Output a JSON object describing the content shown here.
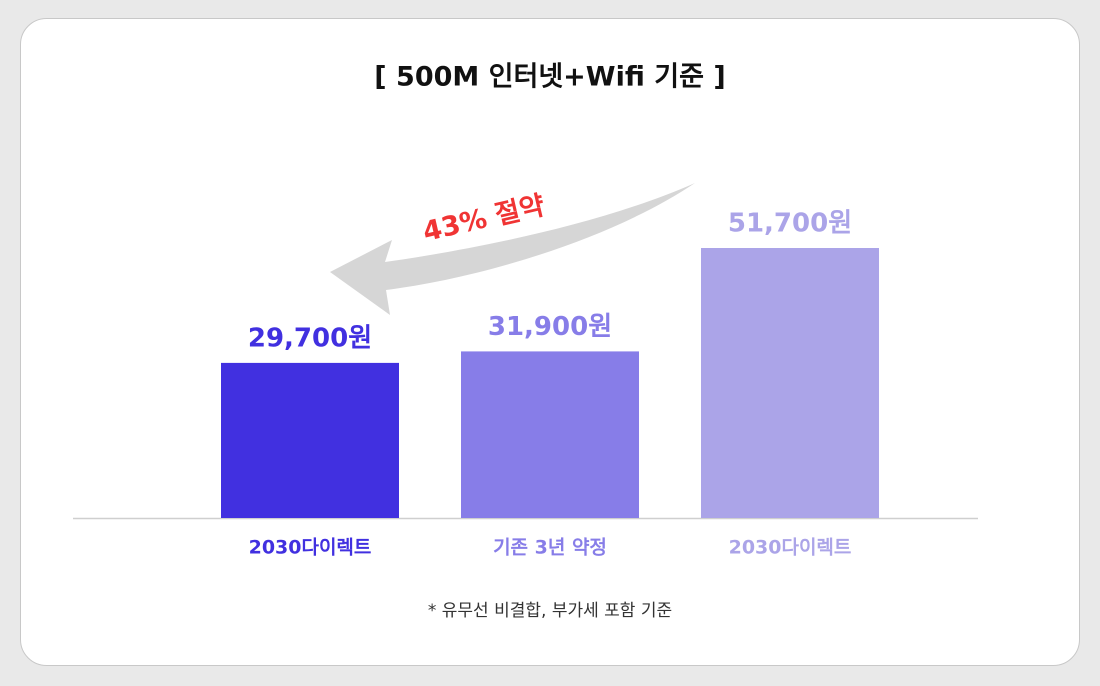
{
  "chart_data": {
    "type": "bar",
    "title": "[ 500M 인터넷+Wifi 기준 ]",
    "categories": [
      "2030다이렉트",
      "기존 3년 약정",
      "2030다이렉트"
    ],
    "values": [
      29700,
      31900,
      51700
    ],
    "value_labels": [
      "29,700원",
      "31,900원",
      "51,700원"
    ],
    "colors": [
      "#4130e0",
      "#877de8",
      "#aba4e8"
    ],
    "annotation": "43% 절약",
    "footnote": "* 유무선 비결합, 부가세 포함 기준"
  }
}
